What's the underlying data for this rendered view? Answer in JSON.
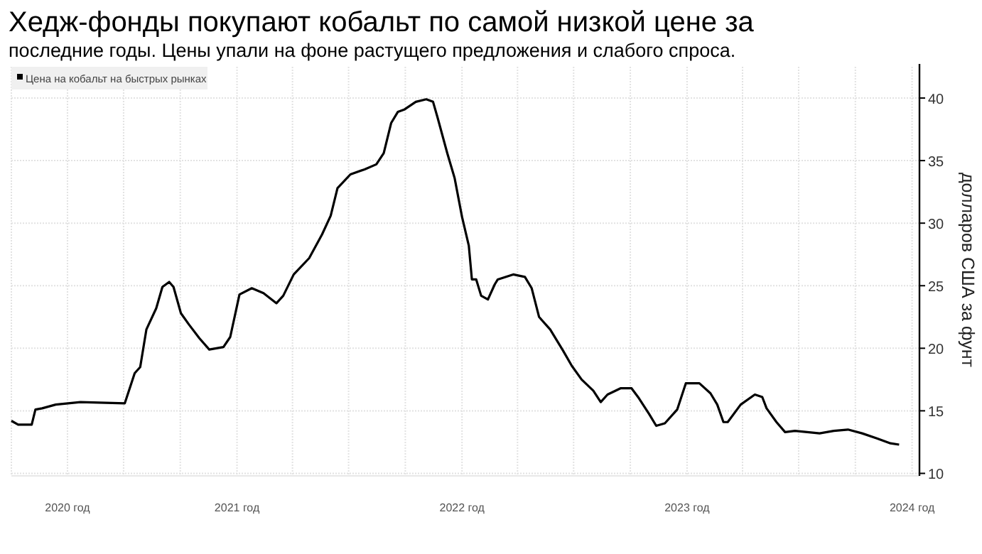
{
  "chart_data": {
    "type": "line",
    "title": "Хедж-фонды покупают кобальт по самой низкой цене за",
    "subtitle": "последние годы. Цены упали на фоне растущего предложения и слабого спроса.",
    "ylabel": "долларов США за фунт",
    "legend": "top left",
    "grid": true,
    "xlim": [
      "2020-01-01",
      "2024-01-13"
    ],
    "xticks": [
      {
        "value": "2020-01-01",
        "label": null
      },
      {
        "value": "2020-04-01",
        "label": "2020 год"
      },
      {
        "value": "2020-07-01",
        "label": null
      },
      {
        "value": "2020-10-01",
        "label": null
      },
      {
        "value": "2021-01-01",
        "label": "2021 год"
      },
      {
        "value": "2021-04-01",
        "label": null
      },
      {
        "value": "2021-07-01",
        "label": null
      },
      {
        "value": "2021-10-01",
        "label": null
      },
      {
        "value": "2022-01-01",
        "label": "2022 год"
      },
      {
        "value": "2022-04-01",
        "label": null
      },
      {
        "value": "2022-07-01",
        "label": null
      },
      {
        "value": "2022-10-01",
        "label": null
      },
      {
        "value": "2023-01-01",
        "label": "2023 год"
      },
      {
        "value": "2023-04-01",
        "label": null
      },
      {
        "value": "2023-07-01",
        "label": null
      },
      {
        "value": "2023-10-01",
        "label": null
      },
      {
        "value": "2024-01-01",
        "label": "2024 год"
      }
    ],
    "ylim": [
      9.8,
      42.5
    ],
    "yticks": [
      10,
      15,
      20,
      25,
      30,
      35,
      40
    ],
    "series": [
      {
        "name": "Цена на кобальт на быстрых рынках",
        "color": "#000000",
        "x": [
          "2020-01-01",
          "2020-01-12",
          "2020-02-03",
          "2020-02-09",
          "2020-02-20",
          "2020-03-13",
          "2020-04-22",
          "2020-07-03",
          "2020-07-19",
          "2020-07-28",
          "2020-08-07",
          "2020-08-23",
          "2020-09-02",
          "2020-09-13",
          "2020-09-20",
          "2020-10-02",
          "2020-10-15",
          "2020-11-01",
          "2020-11-17",
          "2020-12-10",
          "2020-12-21",
          "2021-01-05",
          "2021-01-25",
          "2021-02-13",
          "2021-03-06",
          "2021-03-17",
          "2021-04-03",
          "2021-04-28",
          "2021-05-19",
          "2021-06-02",
          "2021-06-13",
          "2021-07-04",
          "2021-07-27",
          "2021-08-15",
          "2021-08-27",
          "2021-09-08",
          "2021-09-19",
          "2021-09-30",
          "2021-10-18",
          "2021-11-04",
          "2021-11-15",
          "2021-11-22",
          "2021-12-08",
          "2021-12-20",
          "2022-01-01",
          "2022-01-12",
          "2022-01-17",
          "2022-01-24",
          "2022-02-01",
          "2022-02-12",
          "2022-02-23",
          "2022-02-28",
          "2022-03-25",
          "2022-04-13",
          "2022-04-24",
          "2022-05-06",
          "2022-05-24",
          "2022-06-14",
          "2022-06-28",
          "2022-07-14",
          "2022-08-02",
          "2022-08-14",
          "2022-08-25",
          "2022-09-15",
          "2022-10-03",
          "2022-10-15",
          "2022-11-01",
          "2022-11-12",
          "2022-11-26",
          "2022-12-16",
          "2022-12-30",
          "2023-01-21",
          "2023-02-08",
          "2023-02-19",
          "2023-03-01",
          "2023-03-08",
          "2023-03-29",
          "2023-04-21",
          "2023-05-03",
          "2023-05-10",
          "2023-05-26",
          "2023-06-09",
          "2023-06-25",
          "2023-08-04",
          "2023-08-27",
          "2023-09-19",
          "2023-10-12",
          "2023-11-05",
          "2023-11-27",
          "2023-12-11"
        ],
        "values": [
          14.2,
          13.9,
          13.9,
          15.1,
          15.2,
          15.5,
          15.7,
          15.6,
          18,
          18.5,
          21.5,
          23.2,
          24.9,
          25.3,
          24.9,
          22.8,
          21.9,
          20.8,
          19.9,
          20.1,
          20.9,
          24.3,
          24.8,
          24.4,
          23.6,
          24.2,
          25.9,
          27.2,
          29.1,
          30.6,
          32.8,
          33.9,
          34.3,
          34.7,
          35.6,
          38,
          38.9,
          39.1,
          39.7,
          39.9,
          39.7,
          38.5,
          35.6,
          33.6,
          30.5,
          28.2,
          25.5,
          25.5,
          24.2,
          23.9,
          25.1,
          25.5,
          25.9,
          25.7,
          24.8,
          22.5,
          21.5,
          19.8,
          18.6,
          17.5,
          16.6,
          15.7,
          16.3,
          16.8,
          16.8,
          16,
          14.7,
          13.8,
          14,
          15.1,
          17.2,
          17.2,
          16.4,
          15.5,
          14.1,
          14.1,
          15.5,
          16.3,
          16.1,
          15.2,
          14.1,
          13.3,
          13.4,
          13.2,
          13.4,
          13.5,
          13.2,
          12.8,
          12.4,
          12.3
        ]
      }
    ]
  }
}
